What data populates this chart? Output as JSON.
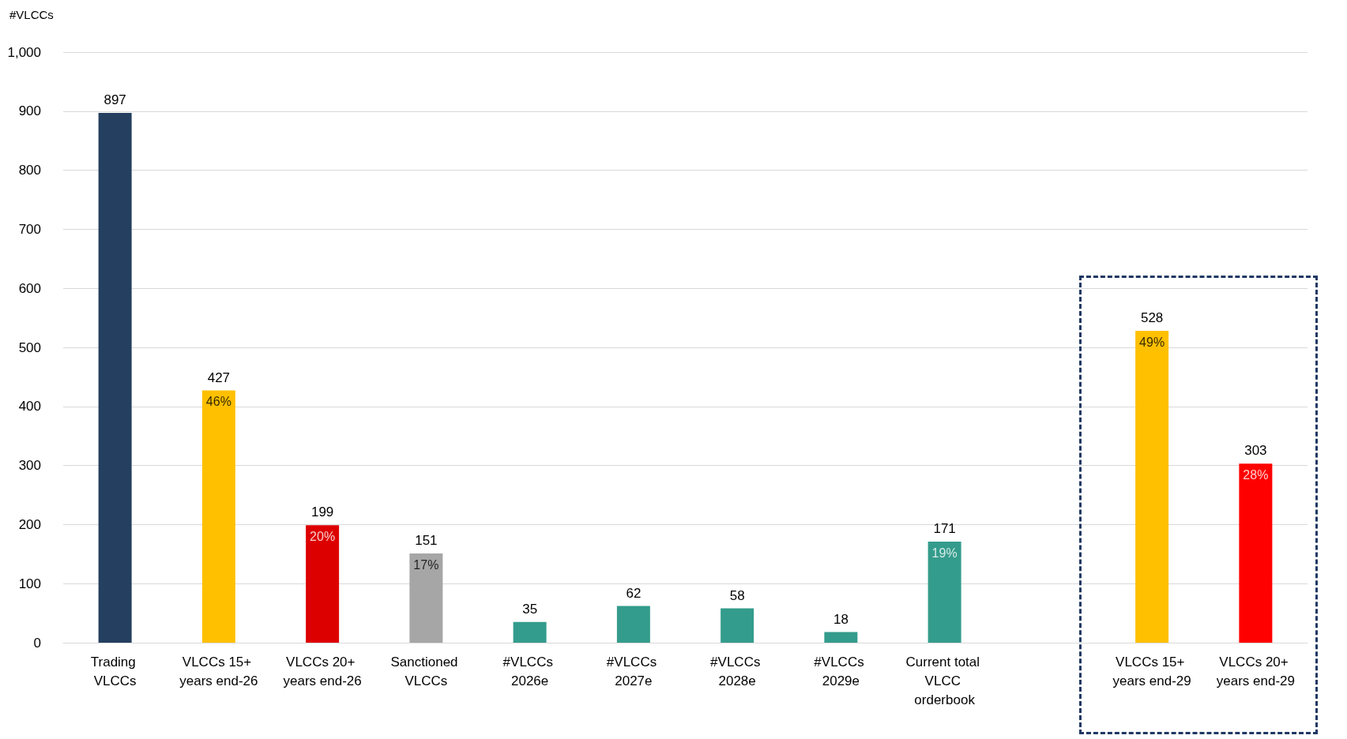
{
  "chart_data": {
    "type": "bar",
    "ylabel": "#VLCCs",
    "categories": [
      "Trading VLCCs",
      "VLCCs 15+ years end-26",
      "VLCCs 20+ years end-26",
      "Sanctioned VLCCs",
      "#VLCCs 2026e",
      "#VLCCs 2027e",
      "#VLCCs 2028e",
      "#VLCCs 2029e",
      "Current total VLCC orderbook",
      null,
      "VLCCs 15+ years end-29",
      "VLCCs 20+ years end-29"
    ],
    "values": [
      897,
      427,
      199,
      151,
      35,
      62,
      58,
      18,
      171,
      null,
      528,
      303
    ],
    "colors": [
      "#243f60",
      "#ffc000",
      "#dd0000",
      "#a6a6a6",
      "#349c8c",
      "#349c8c",
      "#349c8c",
      "#349c8c",
      "#349c8c",
      null,
      "#ffc000",
      "#ff0000"
    ],
    "ylim": [
      0,
      1000
    ],
    "yticks": [
      0,
      100,
      200,
      300,
      400,
      500,
      600,
      700,
      800,
      900,
      {
        "value": 1000,
        "label": "1,000"
      }
    ],
    "grid": "y",
    "data_labels": true,
    "annotations": [
      {
        "text": "46%",
        "x": "VLCCs 15+ years end-26",
        "y": 427
      },
      {
        "text": "20%",
        "x": "VLCCs 20+ years end-26",
        "y": 199
      },
      {
        "text": "17%",
        "x": "Sanctioned VLCCs",
        "y": 151
      },
      {
        "text": "19%",
        "x": "Current total VLCC orderbook",
        "y": 171
      },
      {
        "text": "49%",
        "x": "VLCCs 15+ years end-29",
        "y": 528
      },
      {
        "text": "28%",
        "x": "VLCCs 20+ years end-29",
        "y": 303
      }
    ]
  }
}
